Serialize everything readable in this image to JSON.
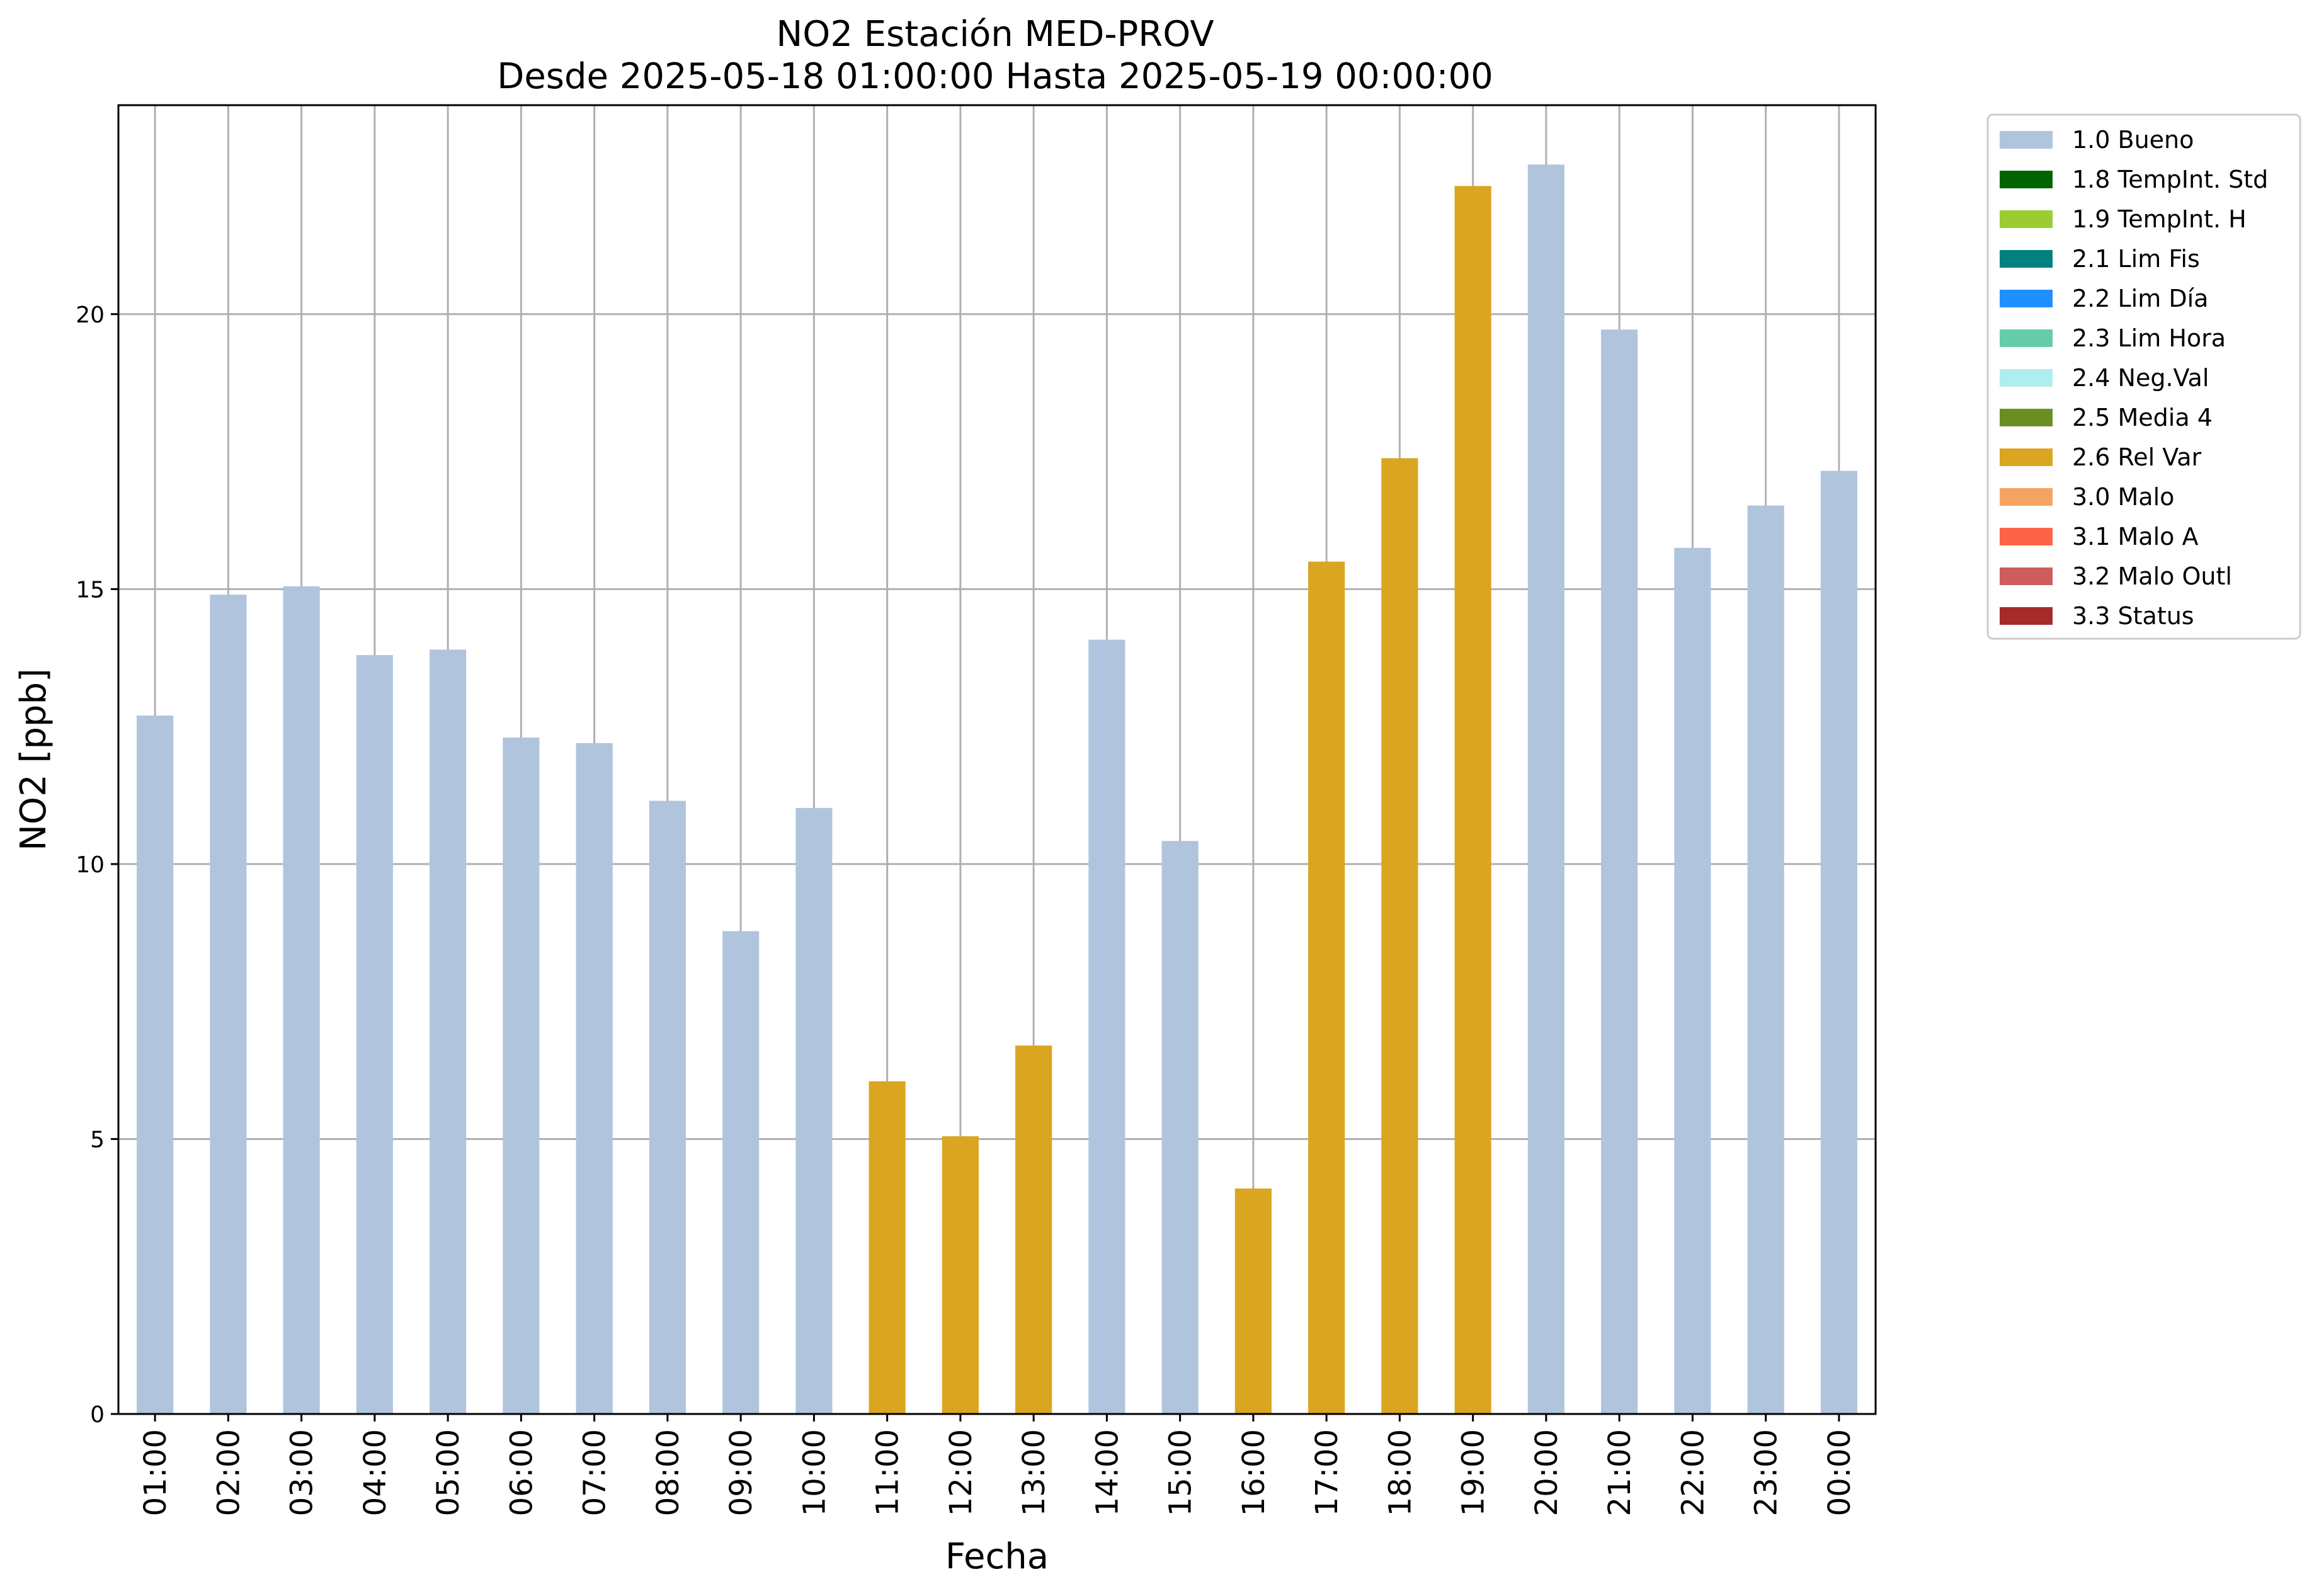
{
  "chart_data": {
    "type": "bar",
    "title": "NO2 Estación MED-PROV",
    "subtitle": "Desde 2025-05-18 01:00:00 Hasta 2025-05-19 00:00:00",
    "xlabel": "Fecha",
    "ylabel": "NO2 [ppb]",
    "ylim": [
      0,
      23.8
    ],
    "yticks": [
      0,
      5,
      10,
      15,
      20
    ],
    "grid": true,
    "legend_position": "outside-right",
    "categories": [
      "01:00",
      "02:00",
      "03:00",
      "04:00",
      "05:00",
      "06:00",
      "07:00",
      "08:00",
      "09:00",
      "10:00",
      "11:00",
      "12:00",
      "13:00",
      "14:00",
      "15:00",
      "16:00",
      "17:00",
      "18:00",
      "19:00",
      "20:00",
      "21:00",
      "22:00",
      "23:00",
      "00:00"
    ],
    "values": [
      12.7,
      14.9,
      15.05,
      13.8,
      13.9,
      12.3,
      12.2,
      11.15,
      8.78,
      11.02,
      6.05,
      5.05,
      6.7,
      14.08,
      10.42,
      4.1,
      15.5,
      17.38,
      22.33,
      22.72,
      19.72,
      15.75,
      16.52,
      17.15
    ],
    "flags": [
      "1.0 Bueno",
      "1.0 Bueno",
      "1.0 Bueno",
      "1.0 Bueno",
      "1.0 Bueno",
      "1.0 Bueno",
      "1.0 Bueno",
      "1.0 Bueno",
      "1.0 Bueno",
      "1.0 Bueno",
      "2.6 Rel Var",
      "2.6 Rel Var",
      "2.6 Rel Var",
      "1.0 Bueno",
      "1.0 Bueno",
      "2.6 Rel Var",
      "2.6 Rel Var",
      "2.6 Rel Var",
      "2.6 Rel Var",
      "1.0 Bueno",
      "1.0 Bueno",
      "1.0 Bueno",
      "1.0 Bueno",
      "1.0 Bueno"
    ],
    "legend": [
      {
        "label": "1.0 Bueno",
        "color": "#b0c4de"
      },
      {
        "label": "1.8 TempInt. Std",
        "color": "#006400"
      },
      {
        "label": "1.9 TempInt. H",
        "color": "#9acd32"
      },
      {
        "label": "2.1 Lim Fis",
        "color": "#008080"
      },
      {
        "label": "2.2 Lim Día",
        "color": "#1e90ff"
      },
      {
        "label": "2.3 Lim Hora",
        "color": "#66cdaa"
      },
      {
        "label": "2.4 Neg.Val",
        "color": "#afeeee"
      },
      {
        "label": "2.5 Media 4",
        "color": "#6b8e23"
      },
      {
        "label": "2.6 Rel Var",
        "color": "#daa520"
      },
      {
        "label": "3.0 Malo",
        "color": "#f4a460"
      },
      {
        "label": "3.1 Malo A",
        "color": "#ff6347"
      },
      {
        "label": "3.2 Malo Outl",
        "color": "#cd5c5c"
      },
      {
        "label": "3.3 Status",
        "color": "#a52a2a"
      }
    ]
  }
}
